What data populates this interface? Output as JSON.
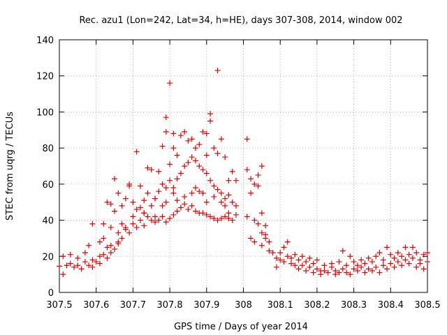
{
  "chart_data": {
    "type": "scatter",
    "title": "Rec. azu1 (Lon=242, Lat=34, h=HE), days 307-308, 2014, window 002",
    "xlabel": "GPS time / Days of year 2014",
    "ylabel": "STEC from uqrg / TECUs",
    "xlim": [
      307.5,
      308.5
    ],
    "ylim": [
      0,
      140
    ],
    "xticks": [
      307.5,
      307.6,
      307.7,
      307.8,
      307.9,
      308.0,
      308.1,
      308.2,
      308.3,
      308.4,
      308.5
    ],
    "xtick_labels": [
      "307.5",
      "307.6",
      "307.7",
      "307.8",
      "307.9",
      "308",
      "308.1",
      "308.2",
      "308.3",
      "308.4",
      "308.5"
    ],
    "yticks": [
      0,
      20,
      40,
      60,
      80,
      100,
      120,
      140
    ],
    "ytick_labels": [
      "0",
      "20",
      "40",
      "60",
      "80",
      "100",
      "120",
      "140"
    ],
    "grid": true,
    "marker": "+",
    "color": "#e00000",
    "points": [
      [
        307.5,
        14.5
      ],
      [
        307.51,
        20
      ],
      [
        307.51,
        10
      ],
      [
        307.52,
        15
      ],
      [
        307.53,
        21
      ],
      [
        307.53,
        16
      ],
      [
        307.54,
        14
      ],
      [
        307.55,
        19
      ],
      [
        307.55,
        15
      ],
      [
        307.56,
        13
      ],
      [
        307.57,
        17
      ],
      [
        307.57,
        22
      ],
      [
        307.58,
        15
      ],
      [
        307.59,
        14
      ],
      [
        307.59,
        18
      ],
      [
        307.6,
        17
      ],
      [
        307.61,
        20
      ],
      [
        307.61,
        16
      ],
      [
        307.62,
        21
      ],
      [
        307.63,
        25
      ],
      [
        307.63,
        19
      ],
      [
        307.64,
        22
      ],
      [
        307.64,
        26
      ],
      [
        307.65,
        24
      ],
      [
        307.66,
        28
      ],
      [
        307.66,
        33
      ],
      [
        307.67,
        30
      ],
      [
        307.68,
        35
      ],
      [
        307.69,
        33
      ],
      [
        307.7,
        38
      ],
      [
        307.71,
        36
      ],
      [
        307.72,
        40
      ],
      [
        307.73,
        37
      ],
      [
        307.74,
        42
      ],
      [
        307.75,
        40
      ],
      [
        307.76,
        39
      ],
      [
        307.77,
        40
      ],
      [
        307.78,
        42
      ],
      [
        307.79,
        39
      ],
      [
        307.8,
        41
      ],
      [
        307.81,
        43
      ],
      [
        307.82,
        45
      ],
      [
        307.83,
        47
      ],
      [
        307.84,
        49
      ],
      [
        307.85,
        46
      ],
      [
        307.86,
        48
      ],
      [
        307.87,
        45
      ],
      [
        307.88,
        44
      ],
      [
        307.89,
        44
      ],
      [
        307.9,
        43
      ],
      [
        307.91,
        42
      ],
      [
        307.92,
        41
      ],
      [
        307.93,
        40
      ],
      [
        307.94,
        41
      ],
      [
        307.95,
        42
      ],
      [
        307.96,
        41
      ],
      [
        307.97,
        40
      ],
      [
        307.98,
        43
      ],
      [
        307.58,
        26
      ],
      [
        307.59,
        38
      ],
      [
        307.61,
        28
      ],
      [
        307.62,
        38
      ],
      [
        307.63,
        50
      ],
      [
        307.64,
        49
      ],
      [
        307.65,
        45
      ],
      [
        307.66,
        55
      ],
      [
        307.67,
        48
      ],
      [
        307.68,
        52
      ],
      [
        307.69,
        60
      ],
      [
        307.7,
        50
      ],
      [
        307.71,
        46
      ],
      [
        307.72,
        47
      ],
      [
        307.73,
        51
      ],
      [
        307.74,
        55
      ],
      [
        307.75,
        48
      ],
      [
        307.76,
        52
      ],
      [
        307.77,
        56
      ],
      [
        307.78,
        60
      ],
      [
        307.79,
        58
      ],
      [
        307.8,
        62
      ],
      [
        307.81,
        58
      ],
      [
        307.82,
        63
      ],
      [
        307.83,
        66
      ],
      [
        307.84,
        70
      ],
      [
        307.85,
        72
      ],
      [
        307.86,
        75
      ],
      [
        307.87,
        73
      ],
      [
        307.88,
        70
      ],
      [
        307.89,
        68
      ],
      [
        307.9,
        66
      ],
      [
        307.91,
        62
      ],
      [
        307.92,
        59
      ],
      [
        307.93,
        57
      ],
      [
        307.94,
        55
      ],
      [
        307.95,
        52
      ],
      [
        307.96,
        54
      ],
      [
        307.97,
        50
      ],
      [
        307.98,
        48
      ],
      [
        307.62,
        30
      ],
      [
        307.64,
        36
      ],
      [
        307.65,
        63
      ],
      [
        307.67,
        38
      ],
      [
        307.69,
        59
      ],
      [
        307.71,
        78
      ],
      [
        307.72,
        59
      ],
      [
        307.73,
        44
      ],
      [
        307.74,
        69
      ],
      [
        307.75,
        68
      ],
      [
        307.76,
        42
      ],
      [
        307.77,
        67
      ],
      [
        307.78,
        81
      ],
      [
        307.79,
        97
      ],
      [
        307.79,
        89
      ],
      [
        307.8,
        71
      ],
      [
        307.8,
        116
      ],
      [
        307.81,
        88
      ],
      [
        307.81,
        80
      ],
      [
        307.82,
        76
      ],
      [
        307.83,
        87
      ],
      [
        307.84,
        89
      ],
      [
        307.85,
        84
      ],
      [
        307.86,
        85
      ],
      [
        307.87,
        80
      ],
      [
        307.88,
        82
      ],
      [
        307.89,
        89
      ],
      [
        307.9,
        88
      ],
      [
        307.9,
        76
      ],
      [
        307.91,
        99
      ],
      [
        307.91,
        95
      ],
      [
        307.92,
        80
      ],
      [
        307.93,
        123
      ],
      [
        307.93,
        77
      ],
      [
        307.94,
        85
      ],
      [
        307.95,
        75
      ],
      [
        307.96,
        62
      ],
      [
        307.97,
        67
      ],
      [
        307.98,
        62
      ],
      [
        307.66,
        27
      ],
      [
        307.68,
        36
      ],
      [
        307.7,
        42
      ],
      [
        307.73,
        44
      ],
      [
        307.76,
        52
      ],
      [
        307.78,
        48
      ],
      [
        307.79,
        50
      ],
      [
        307.81,
        55
      ],
      [
        307.82,
        51
      ],
      [
        307.84,
        53
      ],
      [
        307.86,
        55
      ],
      [
        307.87,
        58
      ],
      [
        307.88,
        56
      ],
      [
        307.89,
        55
      ],
      [
        307.9,
        50
      ],
      [
        307.92,
        53
      ],
      [
        307.94,
        50
      ],
      [
        307.95,
        48
      ],
      [
        307.96,
        44
      ],
      [
        308.01,
        85
      ],
      [
        308.01,
        68
      ],
      [
        308.02,
        63
      ],
      [
        308.02,
        55
      ],
      [
        308.03,
        60
      ],
      [
        308.03,
        40
      ],
      [
        308.04,
        59
      ],
      [
        308.04,
        65
      ],
      [
        308.05,
        70
      ],
      [
        308.05,
        44
      ],
      [
        308.06,
        37
      ],
      [
        308.06,
        32
      ],
      [
        308.01,
        42
      ],
      [
        308.02,
        30
      ],
      [
        308.03,
        28
      ],
      [
        308.04,
        38
      ],
      [
        308.05,
        33
      ],
      [
        308.05,
        26
      ],
      [
        308.06,
        30
      ],
      [
        308.07,
        23
      ],
      [
        308.07,
        28
      ],
      [
        308.08,
        22
      ],
      [
        308.09,
        19
      ],
      [
        308.09,
        14
      ],
      [
        308.1,
        18
      ],
      [
        308.1,
        22
      ],
      [
        308.11,
        17
      ],
      [
        308.11,
        25
      ],
      [
        308.12,
        20
      ],
      [
        308.12,
        28
      ],
      [
        308.13,
        16
      ],
      [
        308.13,
        19
      ],
      [
        308.14,
        21
      ],
      [
        308.14,
        15
      ],
      [
        308.15,
        18
      ],
      [
        308.15,
        13
      ],
      [
        308.16,
        20
      ],
      [
        308.16,
        15
      ],
      [
        308.17,
        12
      ],
      [
        308.17,
        17
      ],
      [
        308.18,
        14
      ],
      [
        308.18,
        19
      ],
      [
        308.19,
        11
      ],
      [
        308.19,
        16
      ],
      [
        308.2,
        13
      ],
      [
        308.2,
        18
      ],
      [
        308.21,
        12
      ],
      [
        308.21,
        10
      ],
      [
        308.22,
        15
      ],
      [
        308.22,
        12
      ],
      [
        308.23,
        11
      ],
      [
        308.24,
        14
      ],
      [
        308.24,
        16
      ],
      [
        308.25,
        12
      ],
      [
        308.25,
        10
      ],
      [
        308.26,
        11
      ],
      [
        308.26,
        17
      ],
      [
        308.27,
        13
      ],
      [
        308.27,
        23
      ],
      [
        308.28,
        15
      ],
      [
        308.28,
        11
      ],
      [
        308.29,
        10
      ],
      [
        308.29,
        20
      ],
      [
        308.3,
        13
      ],
      [
        308.3,
        17
      ],
      [
        308.31,
        12
      ],
      [
        308.31,
        15
      ],
      [
        308.32,
        14
      ],
      [
        308.32,
        18
      ],
      [
        308.33,
        16
      ],
      [
        308.33,
        11
      ],
      [
        308.34,
        13
      ],
      [
        308.34,
        19
      ],
      [
        308.35,
        12
      ],
      [
        308.35,
        17
      ],
      [
        308.36,
        14
      ],
      [
        308.36,
        20
      ],
      [
        308.37,
        11
      ],
      [
        308.37,
        22
      ],
      [
        308.38,
        15
      ],
      [
        308.38,
        18
      ],
      [
        308.39,
        13
      ],
      [
        308.39,
        25
      ],
      [
        308.4,
        16
      ],
      [
        308.4,
        21
      ],
      [
        308.41,
        14
      ],
      [
        308.41,
        19
      ],
      [
        308.42,
        17
      ],
      [
        308.42,
        22
      ],
      [
        308.43,
        15
      ],
      [
        308.43,
        20
      ],
      [
        308.44,
        18
      ],
      [
        308.44,
        25
      ],
      [
        308.45,
        16
      ],
      [
        308.45,
        21
      ],
      [
        308.46,
        19
      ],
      [
        308.46,
        25
      ],
      [
        308.47,
        14
      ],
      [
        308.47,
        22
      ],
      [
        308.48,
        18
      ],
      [
        308.48,
        16
      ],
      [
        308.49,
        21
      ],
      [
        308.49,
        13
      ],
      [
        308.5,
        17
      ],
      [
        308.5,
        22
      ]
    ]
  }
}
